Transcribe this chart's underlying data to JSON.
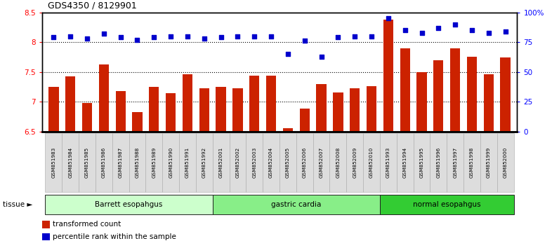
{
  "title": "GDS4350 / 8129901",
  "samples": [
    "GSM851983",
    "GSM851984",
    "GSM851985",
    "GSM851986",
    "GSM851987",
    "GSM851988",
    "GSM851989",
    "GSM851990",
    "GSM851991",
    "GSM851992",
    "GSM852001",
    "GSM852002",
    "GSM852003",
    "GSM852004",
    "GSM852005",
    "GSM852006",
    "GSM852007",
    "GSM852008",
    "GSM852009",
    "GSM852010",
    "GSM851993",
    "GSM851994",
    "GSM851995",
    "GSM851996",
    "GSM851997",
    "GSM851998",
    "GSM851999",
    "GSM852000"
  ],
  "bar_values": [
    7.25,
    7.42,
    6.98,
    7.62,
    7.18,
    6.83,
    7.25,
    7.14,
    7.46,
    7.22,
    7.25,
    7.22,
    7.44,
    7.44,
    6.55,
    6.88,
    7.3,
    7.16,
    7.22,
    7.26,
    8.38,
    7.9,
    7.5,
    7.7,
    7.9,
    7.75,
    7.46,
    7.74
  ],
  "dot_values_pct": [
    79,
    80,
    78,
    82,
    79,
    77,
    79,
    80,
    80,
    78,
    79,
    80,
    80,
    80,
    65,
    76,
    63,
    79,
    80,
    80,
    95,
    85,
    83,
    87,
    90,
    85,
    83,
    84
  ],
  "groups": [
    {
      "label": "Barrett esopahgus",
      "start": 0,
      "end": 10,
      "color": "#ccffcc"
    },
    {
      "label": "gastric cardia",
      "start": 10,
      "end": 20,
      "color": "#88ee88"
    },
    {
      "label": "normal esopahgus",
      "start": 20,
      "end": 28,
      "color": "#33cc33"
    }
  ],
  "bar_color": "#cc2200",
  "dot_color": "#0000cc",
  "ylim_left": [
    6.5,
    8.5
  ],
  "ylim_right": [
    0,
    100
  ],
  "yticks_left": [
    6.5,
    7.0,
    7.5,
    8.0,
    8.5
  ],
  "ytick_labels_left": [
    "6.5",
    "7",
    "7.5",
    "8",
    "8.5"
  ],
  "yticks_right": [
    0,
    25,
    50,
    75,
    100
  ],
  "ytick_labels_right": [
    "0",
    "25",
    "50",
    "75",
    "100%"
  ],
  "hlines": [
    7.0,
    7.5,
    8.0
  ],
  "legend_items": [
    {
      "label": "transformed count",
      "color": "#cc2200"
    },
    {
      "label": "percentile rank within the sample",
      "color": "#0000cc"
    }
  ],
  "tissue_label": "tissue ►",
  "background_color": "#ffffff",
  "xlabel_bg": "#dddddd"
}
